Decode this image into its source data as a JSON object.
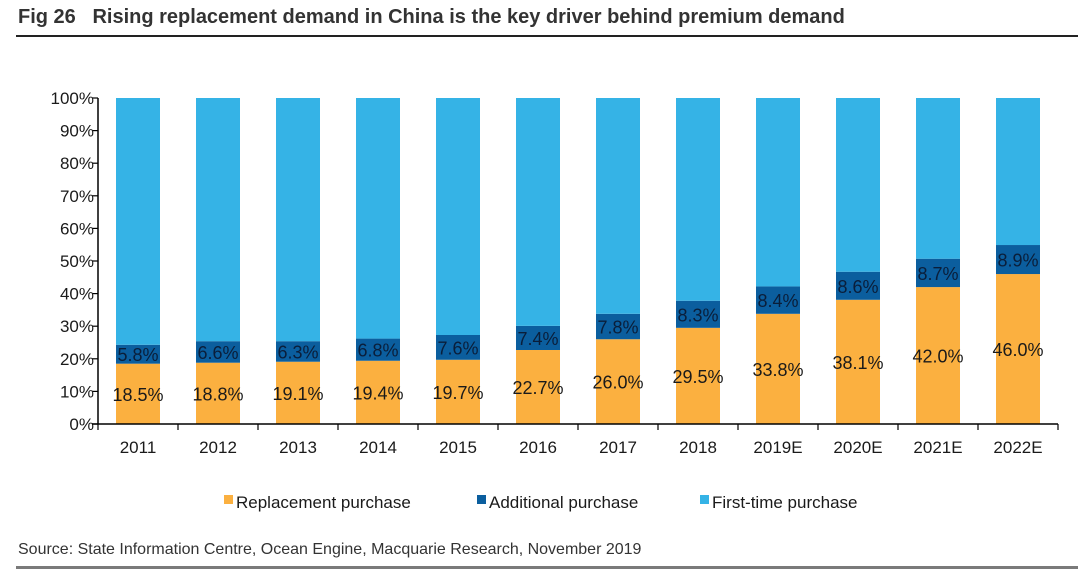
{
  "figure": {
    "title": "Fig 26   Rising replacement demand in China is the key driver behind premium demand",
    "source": "Source: State Information Centre, Ocean Engine, Macquarie Research, November 2019"
  },
  "chart_data": {
    "type": "bar",
    "stacked": true,
    "title": "Rising replacement demand in China is the key driver behind premium demand",
    "xlabel": "",
    "ylabel": "",
    "ylim": [
      0,
      100
    ],
    "yticks": [
      "0%",
      "10%",
      "20%",
      "30%",
      "40%",
      "50%",
      "60%",
      "70%",
      "80%",
      "90%",
      "100%"
    ],
    "categories": [
      "2011",
      "2012",
      "2013",
      "2014",
      "2015",
      "2016",
      "2017",
      "2018",
      "2019E",
      "2020E",
      "2021E",
      "2022E"
    ],
    "series": [
      {
        "name": "Replacement purchase",
        "color": "#FBB040",
        "values": [
          18.5,
          18.8,
          19.1,
          19.4,
          19.7,
          22.7,
          26.0,
          29.5,
          33.8,
          38.1,
          42.0,
          46.0
        ],
        "labels": [
          "18.5%",
          "18.8%",
          "19.1%",
          "19.4%",
          "19.7%",
          "22.7%",
          "26.0%",
          "29.5%",
          "33.8%",
          "38.1%",
          "42.0%",
          "46.0%"
        ]
      },
      {
        "name": "Additional purchase",
        "color": "#0B5E9E",
        "values": [
          5.8,
          6.6,
          6.3,
          6.8,
          7.6,
          7.4,
          7.8,
          8.3,
          8.4,
          8.6,
          8.7,
          8.9
        ],
        "labels": [
          "5.8%",
          "6.6%",
          "6.3%",
          "6.8%",
          "7.6%",
          "7.4%",
          "7.8%",
          "8.3%",
          "8.4%",
          "8.6%",
          "8.7%",
          "8.9%"
        ]
      },
      {
        "name": "First-time purchase",
        "color": "#35B3E6",
        "values": [
          75.7,
          74.6,
          74.6,
          73.8,
          72.7,
          69.9,
          66.2,
          62.2,
          57.8,
          53.3,
          49.3,
          45.1
        ],
        "labels": []
      }
    ],
    "legend": "bottom-center",
    "grid": false
  }
}
